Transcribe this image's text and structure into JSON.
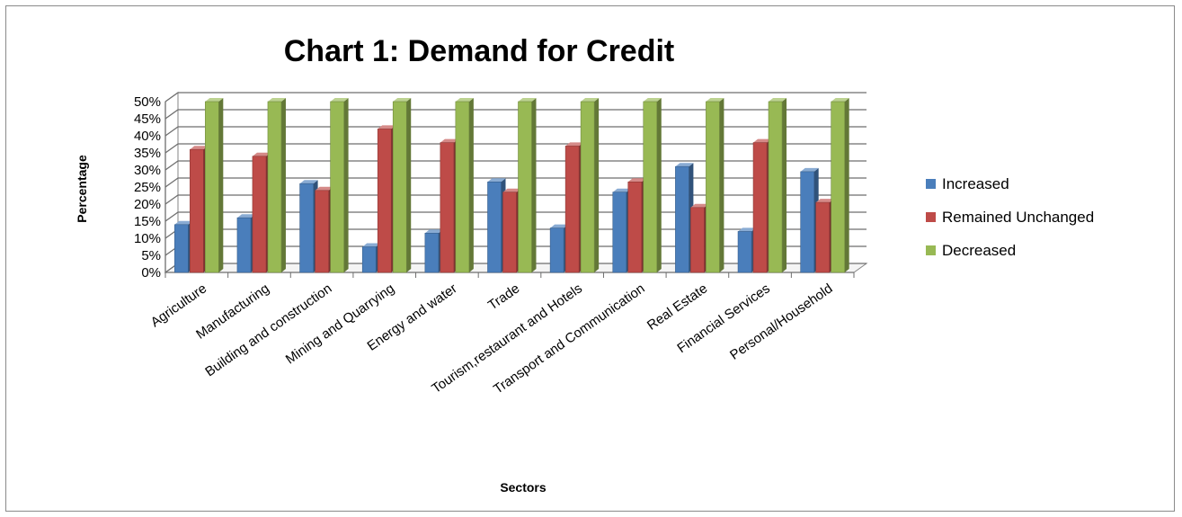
{
  "chart_data": {
    "type": "bar",
    "title": "Chart 1: Demand for Credit",
    "xlabel": "Sectors",
    "ylabel": "Percentage",
    "ylim": [
      0,
      50
    ],
    "y_tick_labels": [
      "0%",
      "5%",
      "10%",
      "15%",
      "20%",
      "25%",
      "30%",
      "35%",
      "40%",
      "45%",
      "50%"
    ],
    "categories": [
      "Agriculture",
      "Manufacturing",
      "Building  and construction",
      "Mining and Quarrying",
      "Energy and water",
      "Trade",
      "Tourism,restaurant and Hotels",
      "Transport and Communication",
      "Real Estate",
      "Financial Services",
      "Personal/Household"
    ],
    "series": [
      {
        "name": "Increased",
        "color": "#4a7ebb",
        "values": [
          14,
          16,
          26,
          7.5,
          11.5,
          26.5,
          13,
          23.5,
          31,
          12,
          29.5
        ]
      },
      {
        "name": "Remained Unchanged",
        "color": "#be4b48",
        "values": [
          36,
          34,
          24,
          42,
          38,
          23.5,
          37,
          26.5,
          19,
          38,
          20.5
        ]
      },
      {
        "name": "Decreased",
        "color": "#98b954",
        "values": [
          50,
          50,
          50,
          50,
          50,
          50,
          50,
          50,
          50,
          50,
          50
        ]
      }
    ],
    "grid": true,
    "legend_position": "right"
  }
}
